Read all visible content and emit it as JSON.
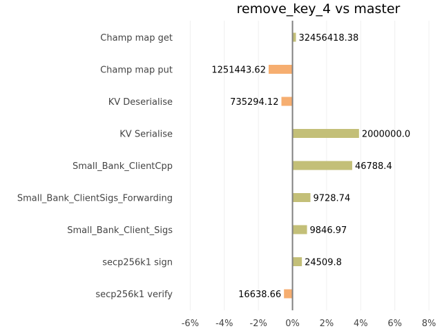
{
  "chart_data": {
    "type": "bar",
    "orientation": "horizontal",
    "title": "remove_key_4 vs master",
    "xlabel": "",
    "ylabel": "",
    "xlim": [
      -6.3,
      8.2
    ],
    "xticks": [
      -6,
      -4,
      -2,
      0,
      2,
      4,
      6,
      8
    ],
    "xtick_labels": [
      "-6%",
      "-4%",
      "-2%",
      "0%",
      "2%",
      "4%",
      "6%",
      "8%"
    ],
    "grid": "vertical",
    "colors": {
      "positive": "#c3bf78",
      "negative": "#f6ae70"
    },
    "categories": [
      "Champ map get",
      "Champ map put",
      "KV Deserialise",
      "KV Serialise",
      "Small_Bank_ClientCpp",
      "Small_Bank_ClientSigs_Forwarding",
      "Small_Bank_Client_Sigs",
      "secp256k1 sign",
      "secp256k1 verify"
    ],
    "values": [
      0.2,
      -1.4,
      -0.65,
      3.9,
      3.5,
      1.05,
      0.85,
      0.55,
      -0.5
    ],
    "data_labels": [
      "32456418.38",
      "1251443.62",
      "735294.12",
      "2000000.0",
      "46788.4",
      "9728.74",
      "9846.97",
      "24509.8",
      "16638.66"
    ]
  }
}
